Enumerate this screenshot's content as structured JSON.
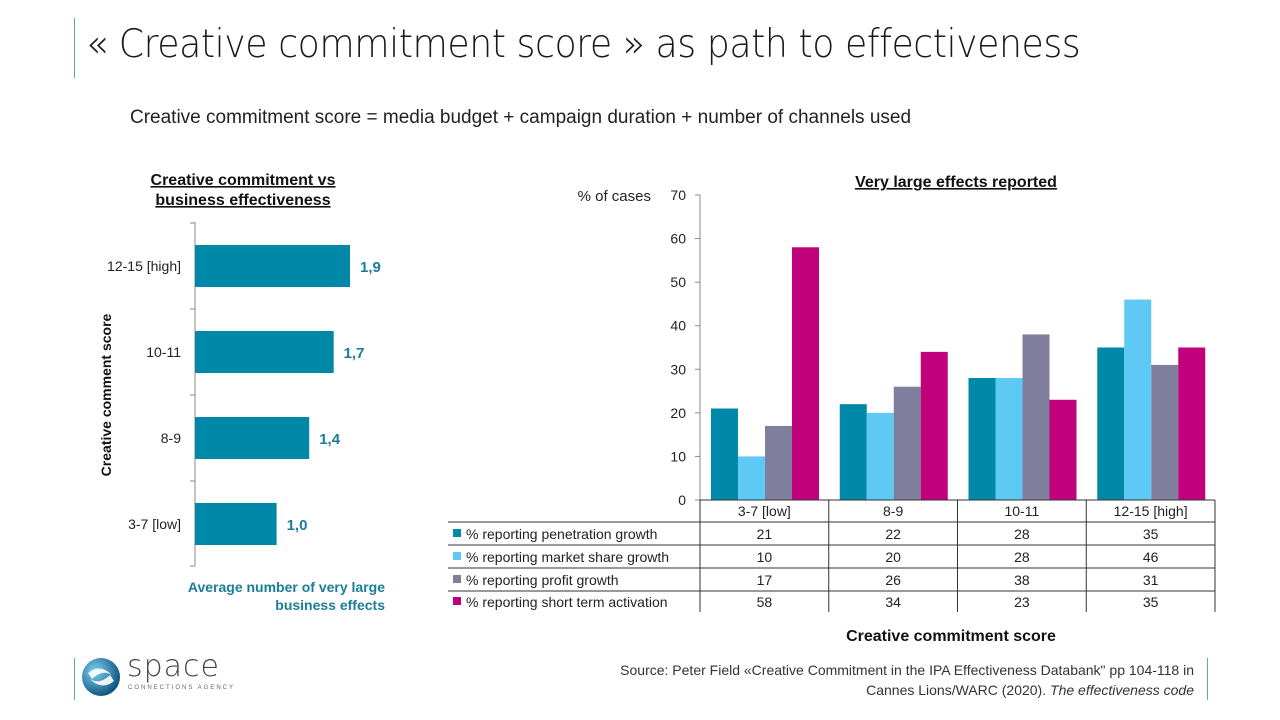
{
  "title": "« Creative commitment score » as path to effectiveness",
  "formula": "Creative commitment  score = media budget  + campaign  duration  + number  of channels used",
  "source": {
    "line1": "Source: Peter Field «Creative Commitment in the IPA Effectiveness Databank\" pp 104-118 in",
    "line2_plain": "Cannes Lions/WARC (2020). ",
    "line2_italic": "The effectiveness code"
  },
  "logo": {
    "name": "space",
    "tagline": "CONNECTIONS AGENCY"
  },
  "colors": {
    "teal": "#0088a9",
    "light_blue": "#5ec9f5",
    "gray": "#7f7f9d",
    "magenta": "#c1007b",
    "label_blue": "#1a7d99"
  },
  "chart_data": [
    {
      "type": "bar",
      "orientation": "horizontal",
      "title_line1": "Creative commitment vs",
      "title_line2": "business effectiveness",
      "ylabel": "Creative comment score",
      "xlabel_line1": "Average number of very large",
      "xlabel_line2": "business effects",
      "categories": [
        "12-15 [high]",
        "10-11",
        "8-9",
        "3-7 [low]"
      ],
      "values": [
        1.9,
        1.7,
        1.4,
        1.0
      ],
      "data_labels": [
        "1,9",
        "1,7",
        "1,4",
        "1,0"
      ],
      "xlim": [
        0,
        2.3
      ]
    },
    {
      "type": "bar",
      "title": "Very large effects reported",
      "ylabel": "% of cases",
      "xlabel": "Creative commitment score",
      "ylim": [
        0,
        70
      ],
      "yticks": [
        0,
        10,
        20,
        30,
        40,
        50,
        60,
        70
      ],
      "categories": [
        "3-7 [low]",
        "8-9",
        "10-11",
        "12-15 [high]"
      ],
      "series": [
        {
          "name": "% reporting penetration growth",
          "color": "#0088a9",
          "values": [
            21,
            22,
            28,
            35
          ]
        },
        {
          "name": "% reporting market share growth",
          "color": "#5ec9f5",
          "values": [
            10,
            20,
            28,
            46
          ]
        },
        {
          "name": "% reporting profit growth",
          "color": "#7f7f9d",
          "values": [
            17,
            26,
            38,
            31
          ]
        },
        {
          "name": "% reporting short term activation",
          "color": "#c1007b",
          "values": [
            58,
            34,
            23,
            35
          ]
        }
      ],
      "legend": "data-table-below"
    }
  ]
}
